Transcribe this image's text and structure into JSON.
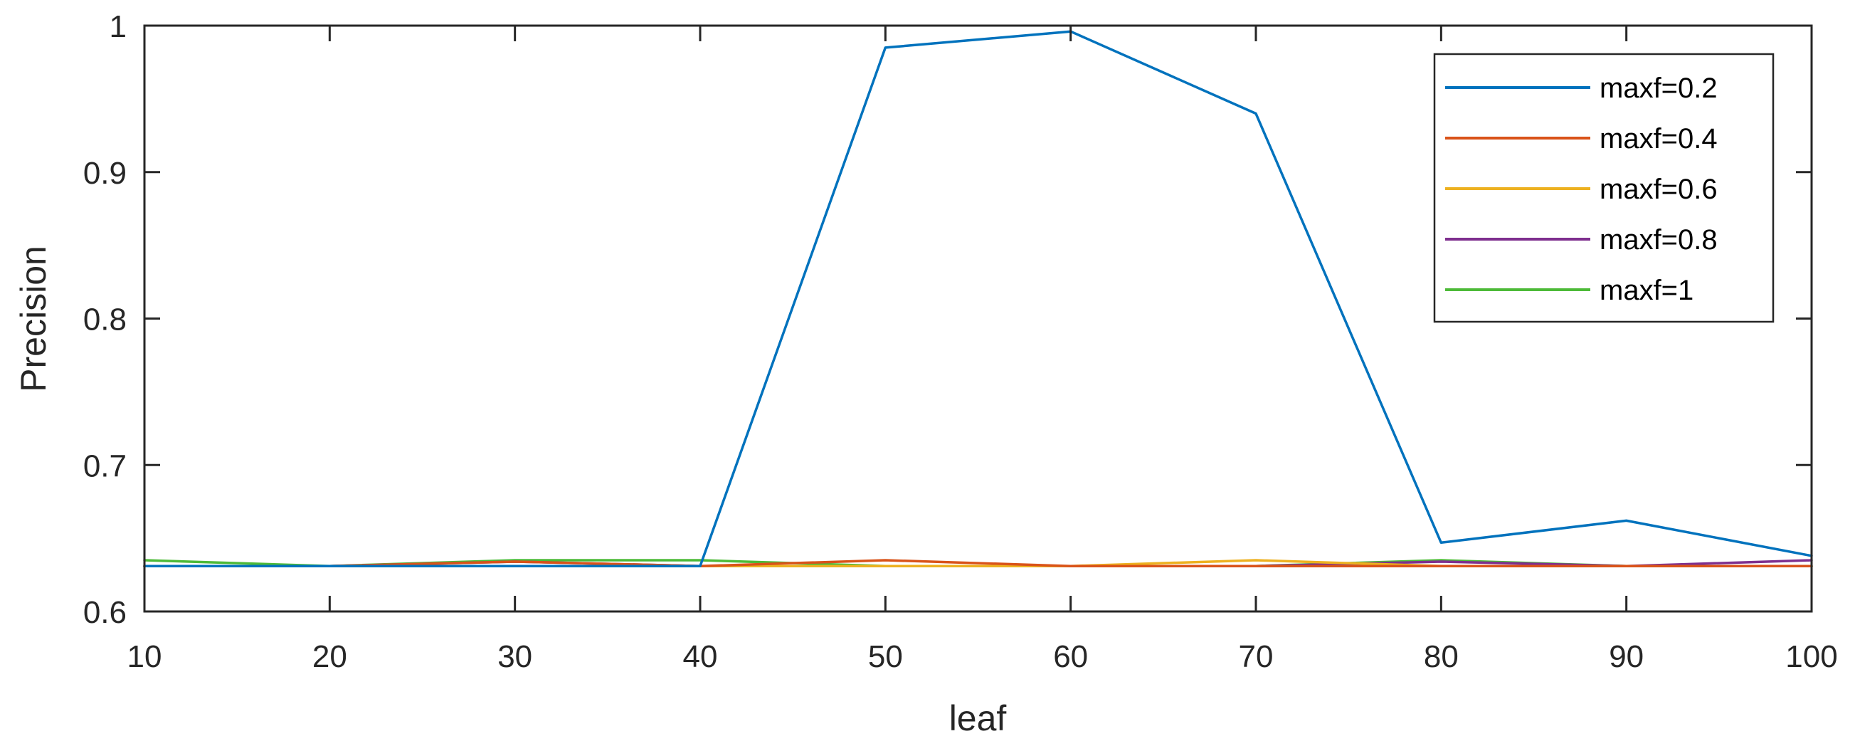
{
  "chart_data": {
    "type": "line",
    "title": "",
    "xlabel": "leaf",
    "ylabel": "Precision",
    "xlim": [
      10,
      100
    ],
    "ylim": [
      0.6,
      1
    ],
    "x": [
      10,
      20,
      30,
      40,
      50,
      60,
      70,
      80,
      90,
      100
    ],
    "xticks": [
      "10",
      "20",
      "30",
      "40",
      "50",
      "60",
      "70",
      "80",
      "90",
      "100"
    ],
    "yticks": [
      "0.6",
      "0.7",
      "0.8",
      "0.9",
      "1"
    ],
    "grid": false,
    "legend_position": "top-right",
    "series": [
      {
        "name": "maxf=0.2",
        "color": "#0072BD",
        "values": [
          0.631,
          0.631,
          0.631,
          0.631,
          0.985,
          0.996,
          0.94,
          0.647,
          0.662,
          0.638
        ]
      },
      {
        "name": "maxf=0.4",
        "color": "#D95319",
        "values": [
          0.631,
          0.631,
          0.634,
          0.631,
          0.635,
          0.631,
          0.631,
          0.631,
          0.631,
          0.631
        ]
      },
      {
        "name": "maxf=0.6",
        "color": "#EDB120",
        "values": [
          0.631,
          0.631,
          0.631,
          0.631,
          0.631,
          0.631,
          0.635,
          0.631,
          0.631,
          0.631
        ]
      },
      {
        "name": "maxf=0.8",
        "color": "#7E2F8E",
        "values": [
          0.631,
          0.631,
          0.634,
          0.631,
          0.631,
          0.631,
          0.631,
          0.634,
          0.631,
          0.635
        ]
      },
      {
        "name": "maxf=1",
        "color": "#4DBA38",
        "values": [
          0.635,
          0.631,
          0.635,
          0.635,
          0.631,
          0.631,
          0.631,
          0.635,
          0.631,
          0.631
        ]
      }
    ]
  }
}
